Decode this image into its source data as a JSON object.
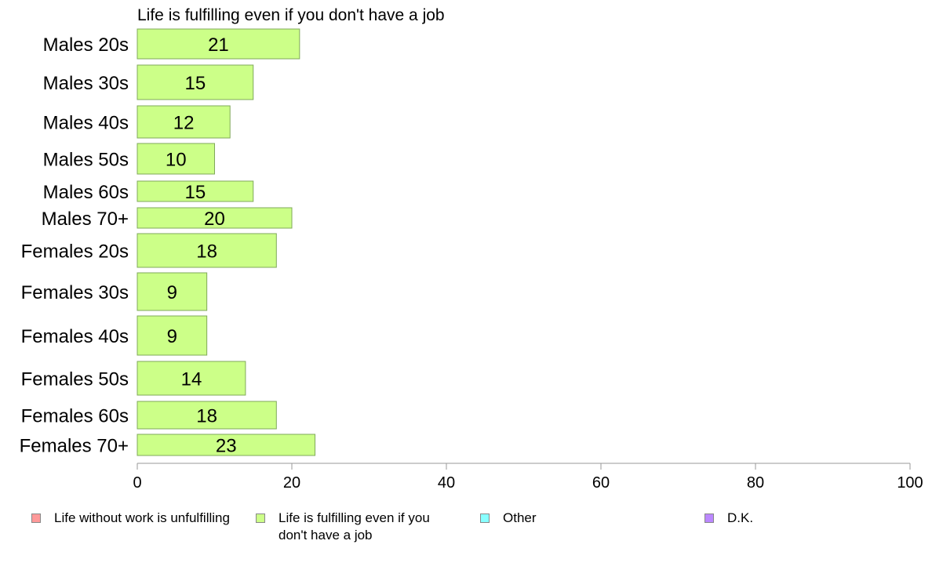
{
  "chart_data": {
    "type": "bar",
    "orientation": "horizontal",
    "title": "Life is fulfilling even if you don't have a job",
    "categories": [
      "Males 20s",
      "Males 30s",
      "Males 40s",
      "Males 50s",
      "Males 60s",
      "Males 70+",
      "Females 20s",
      "Females 30s",
      "Females 40s",
      "Females 50s",
      "Females 60s",
      "Females 70+"
    ],
    "series": [
      {
        "name": "Life is fulfilling even if you don't have a job",
        "color": "#ccff88",
        "values": [
          21,
          15,
          12,
          10,
          15,
          20,
          18,
          9,
          9,
          14,
          18,
          23
        ]
      }
    ],
    "xlim": [
      0,
      100
    ],
    "xticks": [
      0,
      20,
      40,
      60,
      80,
      100
    ],
    "grid": false,
    "legend_position": "bottom"
  },
  "legend": [
    {
      "label": "Life without work is unfulfilling",
      "color": "#ff9999"
    },
    {
      "label": "Life is fulfilling even if you don't have a job",
      "color": "#ccff88"
    },
    {
      "label": "Other",
      "color": "#88ffff"
    },
    {
      "label": "D.K.",
      "color": "#bb88ff"
    }
  ]
}
